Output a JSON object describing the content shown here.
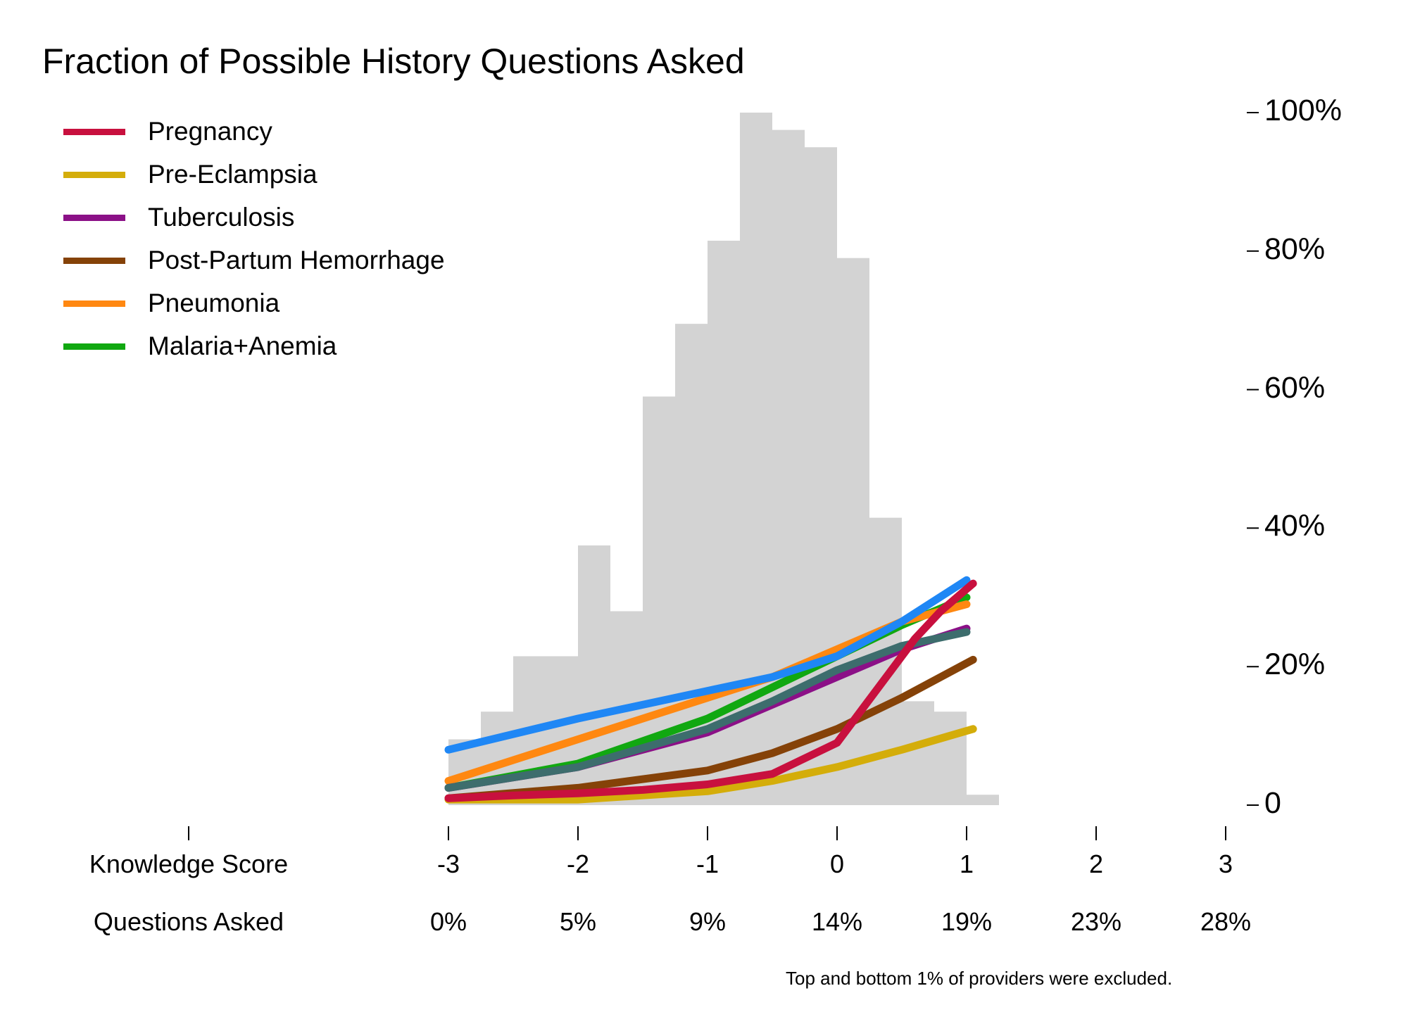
{
  "chart_data": {
    "type": "line",
    "title": "Fraction of Possible History Questions Asked",
    "footnote": "Top and bottom 1% of providers were excluded.",
    "xlim": [
      -3,
      3
    ],
    "ylim": [
      0,
      100
    ],
    "x_axis_rows": [
      {
        "label": "Knowledge Score",
        "ticks": [
          "-3",
          "-2",
          "-1",
          "0",
          "1",
          "2",
          "3"
        ]
      },
      {
        "label": "Questions Asked",
        "ticks": [
          "0%",
          "5%",
          "9%",
          "14%",
          "19%",
          "23%",
          "28%"
        ]
      }
    ],
    "x_tick_values": [
      -3,
      -2,
      -1,
      0,
      1,
      2,
      3
    ],
    "y_ticks": [
      0,
      20,
      40,
      60,
      80,
      100
    ],
    "y_tick_labels": [
      "0",
      "20%",
      "40%",
      "60%",
      "80%",
      "100%"
    ],
    "histogram": {
      "color": "#d3d3d3",
      "bin_edges": [
        -3.0,
        -2.75,
        -2.5,
        -2.0,
        -1.75,
        -1.5,
        -1.25,
        -1.0,
        -0.75,
        -0.5,
        -0.25,
        0.0,
        0.25,
        0.5,
        0.75,
        1.0,
        1.25
      ],
      "values": [
        9.5,
        13.5,
        21.5,
        37.5,
        28,
        59,
        69.5,
        81.5,
        100,
        97.5,
        95,
        79,
        41.5,
        15,
        13.5,
        1.5
      ]
    },
    "series": [
      {
        "name": "Pregnancy",
        "color": "#c8103e",
        "x": [
          -3.0,
          -2.5,
          -2.0,
          -1.5,
          -1.0,
          -0.5,
          0.0,
          0.2,
          0.4,
          0.6,
          0.8,
          1.05
        ],
        "y": [
          1,
          1.4,
          1.7,
          2.2,
          3,
          4.5,
          9,
          14,
          19,
          24,
          28,
          32
        ]
      },
      {
        "name": "Pre-Eclampsia",
        "color": "#d4ad0a",
        "x": [
          -3.0,
          -2.0,
          -1.0,
          -0.5,
          0.0,
          0.5,
          1.05
        ],
        "y": [
          0.8,
          0.8,
          2,
          3.5,
          5.5,
          8,
          11
        ]
      },
      {
        "name": "Tuberculosis",
        "color": "#8b1087",
        "x": [
          -3.0,
          -2.0,
          -1.0,
          -0.5,
          0.0,
          0.5,
          1.0
        ],
        "y": [
          2.5,
          5.5,
          10.5,
          14.5,
          18.5,
          22.5,
          25.5
        ]
      },
      {
        "name": "Post-Partum Hemorrhage",
        "color": "#854208",
        "x": [
          -3.0,
          -2.0,
          -1.0,
          -0.5,
          0.0,
          0.5,
          1.05
        ],
        "y": [
          1,
          2.5,
          5,
          7.5,
          11,
          15.5,
          21
        ]
      },
      {
        "name": "Pneumonia",
        "color": "#ff8811",
        "x": [
          -3.0,
          -2.0,
          -1.0,
          -0.5,
          0.0,
          0.5,
          1.0
        ],
        "y": [
          3.5,
          9.5,
          15.5,
          18.5,
          22.5,
          26.5,
          29
        ]
      },
      {
        "name": "Malaria+Anemia",
        "color": "#11a811",
        "x": [
          -3.0,
          -2.0,
          -1.0,
          -0.5,
          0.0,
          0.5,
          1.0
        ],
        "y": [
          2.5,
          6,
          12.5,
          17,
          21.5,
          26,
          30
        ]
      },
      {
        "color": "#1f87f5",
        "x": [
          -3.0,
          -2.0,
          -1.0,
          -0.5,
          0.0,
          0.5,
          1.0
        ],
        "y": [
          8,
          12.5,
          16.5,
          18.5,
          21.5,
          26.5,
          32.5
        ]
      },
      {
        "color": "#3d6d6d",
        "x": [
          -3.0,
          -2.0,
          -1.0,
          -0.5,
          0.0,
          0.5,
          1.0
        ],
        "y": [
          2.5,
          5.5,
          11,
          15,
          19.5,
          23,
          25
        ]
      }
    ],
    "legend": {
      "position": "top-left",
      "entries": [
        "Pregnancy",
        "Pre-Eclampsia",
        "Tuberculosis",
        "Post-Partum Hemorrhage",
        "Pneumonia",
        "Malaria+Anemia"
      ]
    },
    "grid": false
  }
}
